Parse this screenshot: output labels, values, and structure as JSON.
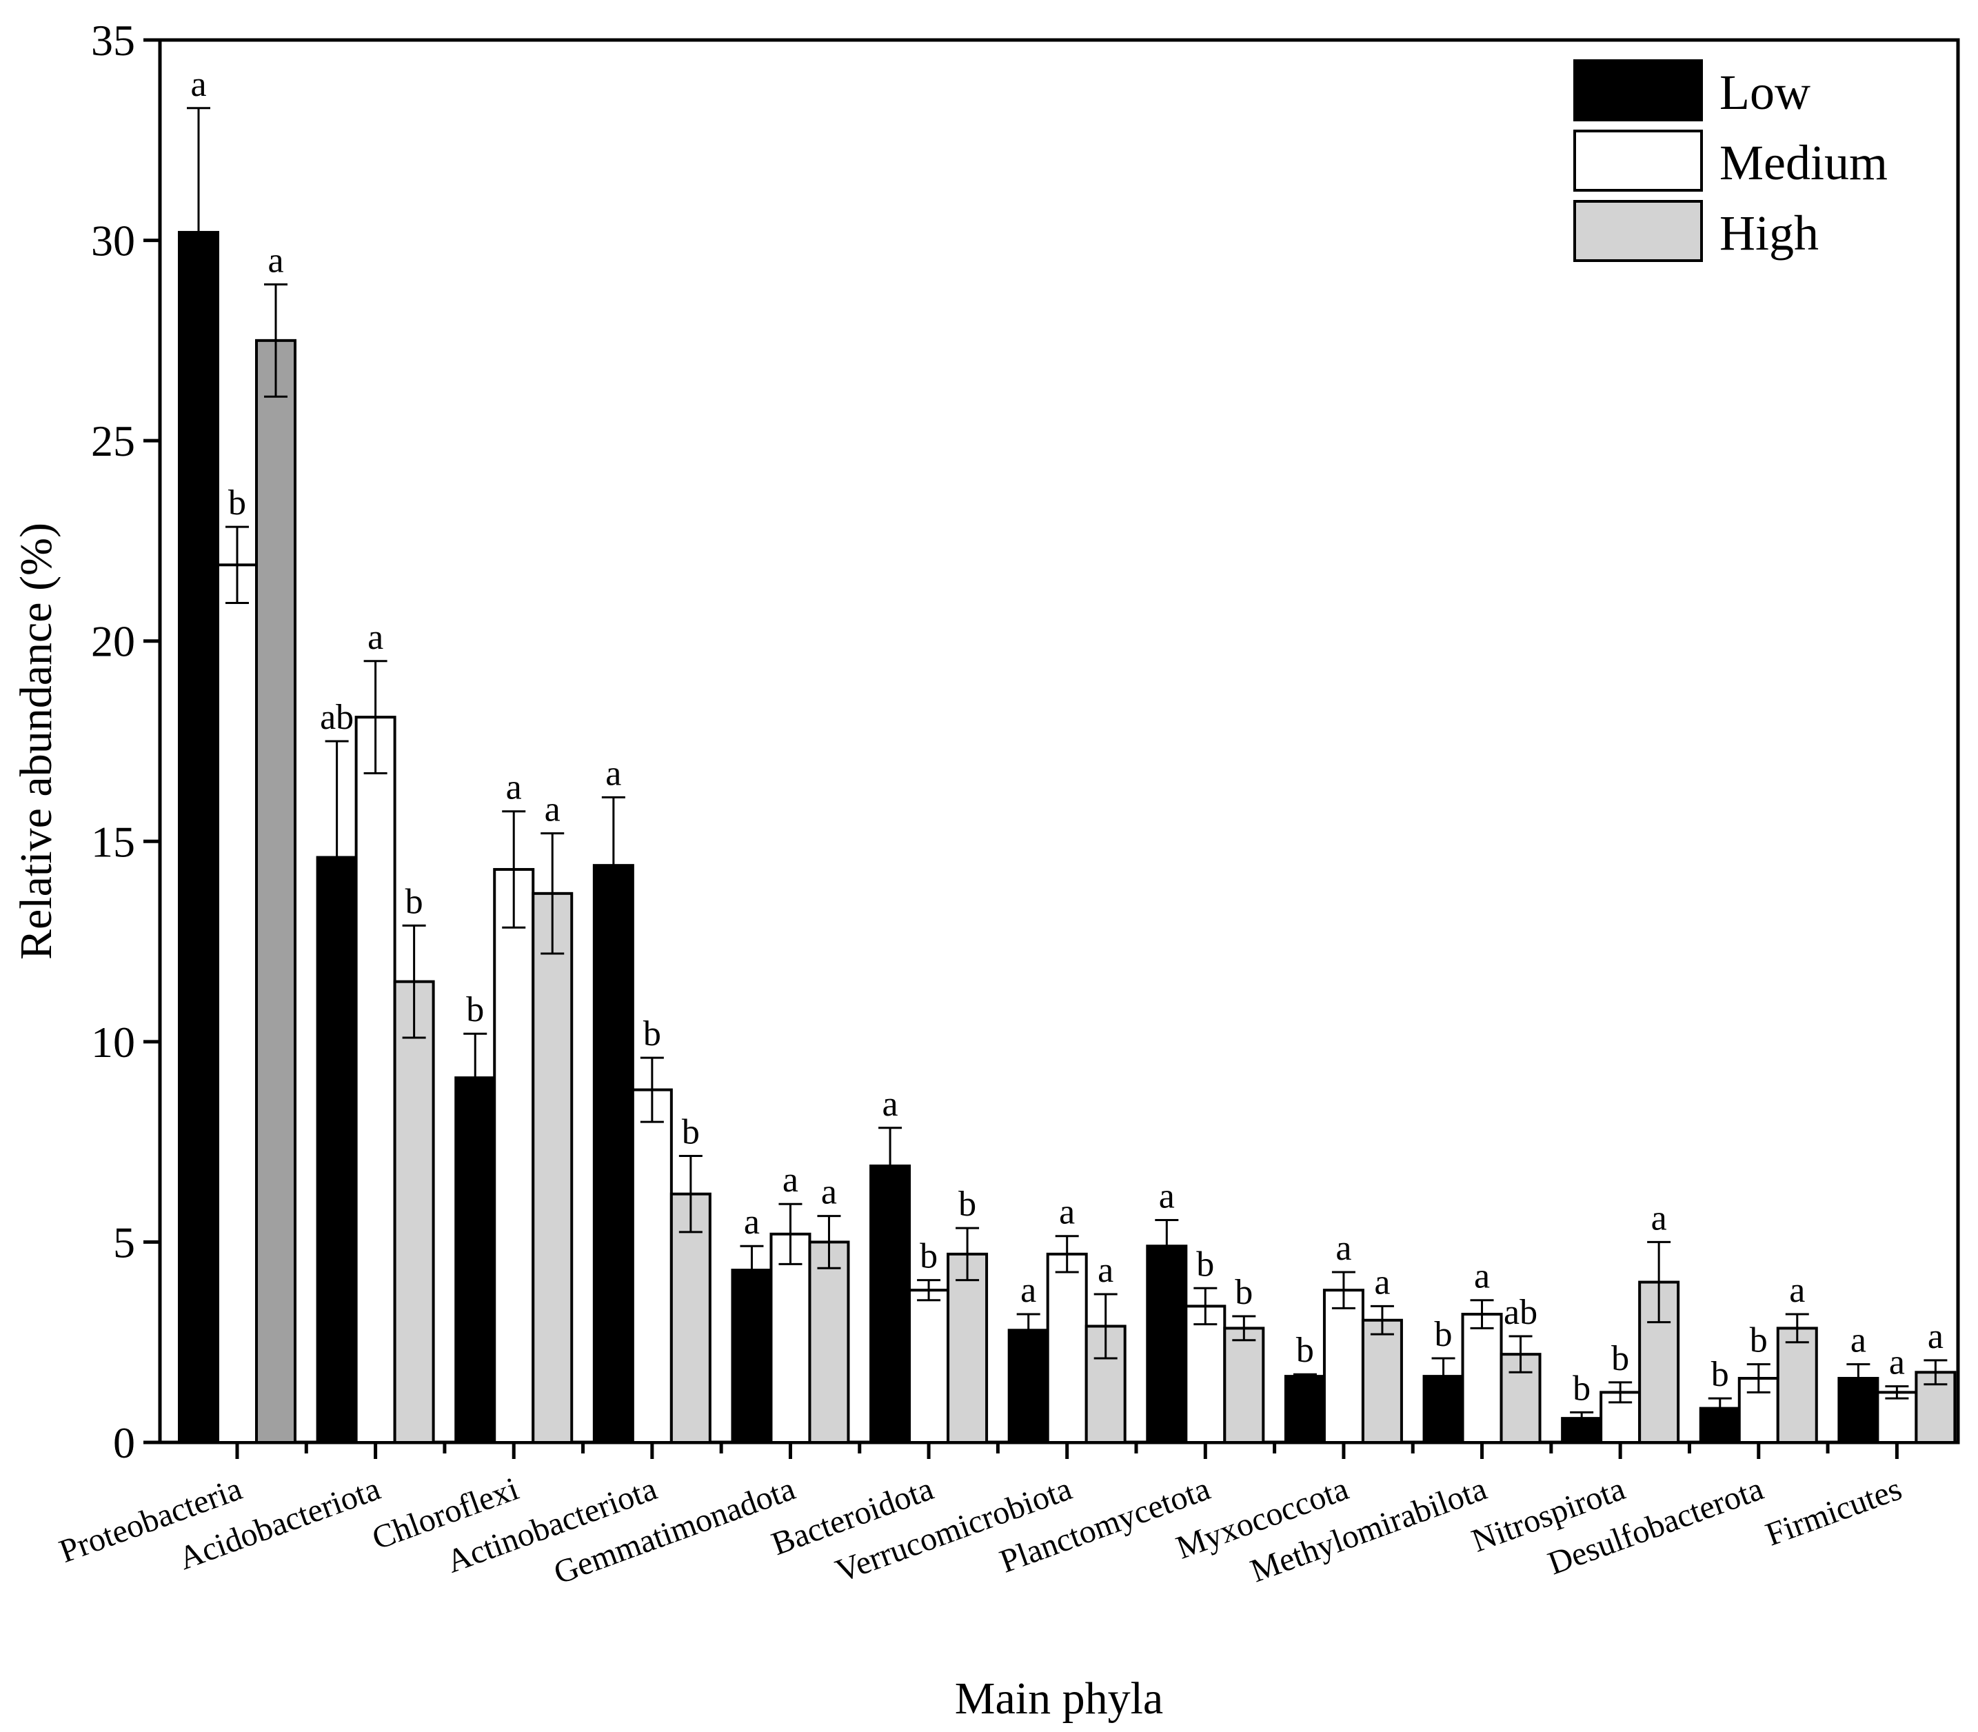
{
  "chart_data": {
    "type": "bar",
    "xlabel": "Main phyla",
    "ylabel": "Relative abundance (%)",
    "ylim": [
      0,
      35
    ],
    "yticks": [
      "0",
      "5",
      "10",
      "15",
      "20",
      "25",
      "30",
      "35"
    ],
    "ytick_values": [
      0,
      5,
      10,
      15,
      20,
      25,
      30,
      35
    ],
    "legend_position": "top-right",
    "categories": [
      "Proteobacteria",
      "Acidobacteriota",
      "Chloroflexi",
      "Actinobacteriota",
      "Gemmatimonadota",
      "Bacteroidota",
      "Verrucomicrobiota",
      "Planctomycetota",
      "Myxococcota",
      "Methylomirabilota",
      "Nitrospirota",
      "Desulfobacterota",
      "Firmicutes"
    ],
    "series": [
      {
        "name": "Low",
        "color": "#000000",
        "values": [
          30.2,
          14.6,
          9.1,
          14.4,
          4.3,
          6.9,
          2.8,
          4.9,
          1.65,
          1.65,
          0.6,
          0.85,
          1.6
        ],
        "errors": [
          3.1,
          2.9,
          1.1,
          1.7,
          0.6,
          0.95,
          0.4,
          0.65,
          0.05,
          0.45,
          0.15,
          0.25,
          0.35
        ],
        "letters": [
          "a",
          "ab",
          "b",
          "a",
          "a",
          "a",
          "a",
          "a",
          "b",
          "b",
          "b",
          "b",
          "a"
        ]
      },
      {
        "name": "Medium",
        "color": "#ffffff",
        "values": [
          21.9,
          18.1,
          14.3,
          8.8,
          5.2,
          3.8,
          4.7,
          3.4,
          3.8,
          3.2,
          1.25,
          1.6,
          1.25
        ],
        "errors": [
          0.95,
          1.4,
          1.45,
          0.8,
          0.75,
          0.25,
          0.45,
          0.45,
          0.45,
          0.35,
          0.25,
          0.35,
          0.15
        ],
        "letters": [
          "b",
          "a",
          "a",
          "b",
          "a",
          "b",
          "a",
          "b",
          "a",
          "a",
          "b",
          "b",
          "a"
        ]
      },
      {
        "name": "High",
        "color": "#d3d3d3",
        "values": [
          27.5,
          11.5,
          13.7,
          6.2,
          5.0,
          4.7,
          2.9,
          2.85,
          3.05,
          2.2,
          4.0,
          2.85,
          1.75
        ],
        "errors": [
          1.4,
          1.4,
          1.5,
          0.95,
          0.65,
          0.65,
          0.8,
          0.3,
          0.35,
          0.45,
          1.0,
          0.35,
          0.3
        ],
        "letters": [
          "a",
          "b",
          "a",
          "b",
          "a",
          "b",
          "a",
          "b",
          "a",
          "ab",
          "a",
          "a",
          "a"
        ]
      }
    ],
    "first_high_bar_color": "#a0a0a0"
  }
}
